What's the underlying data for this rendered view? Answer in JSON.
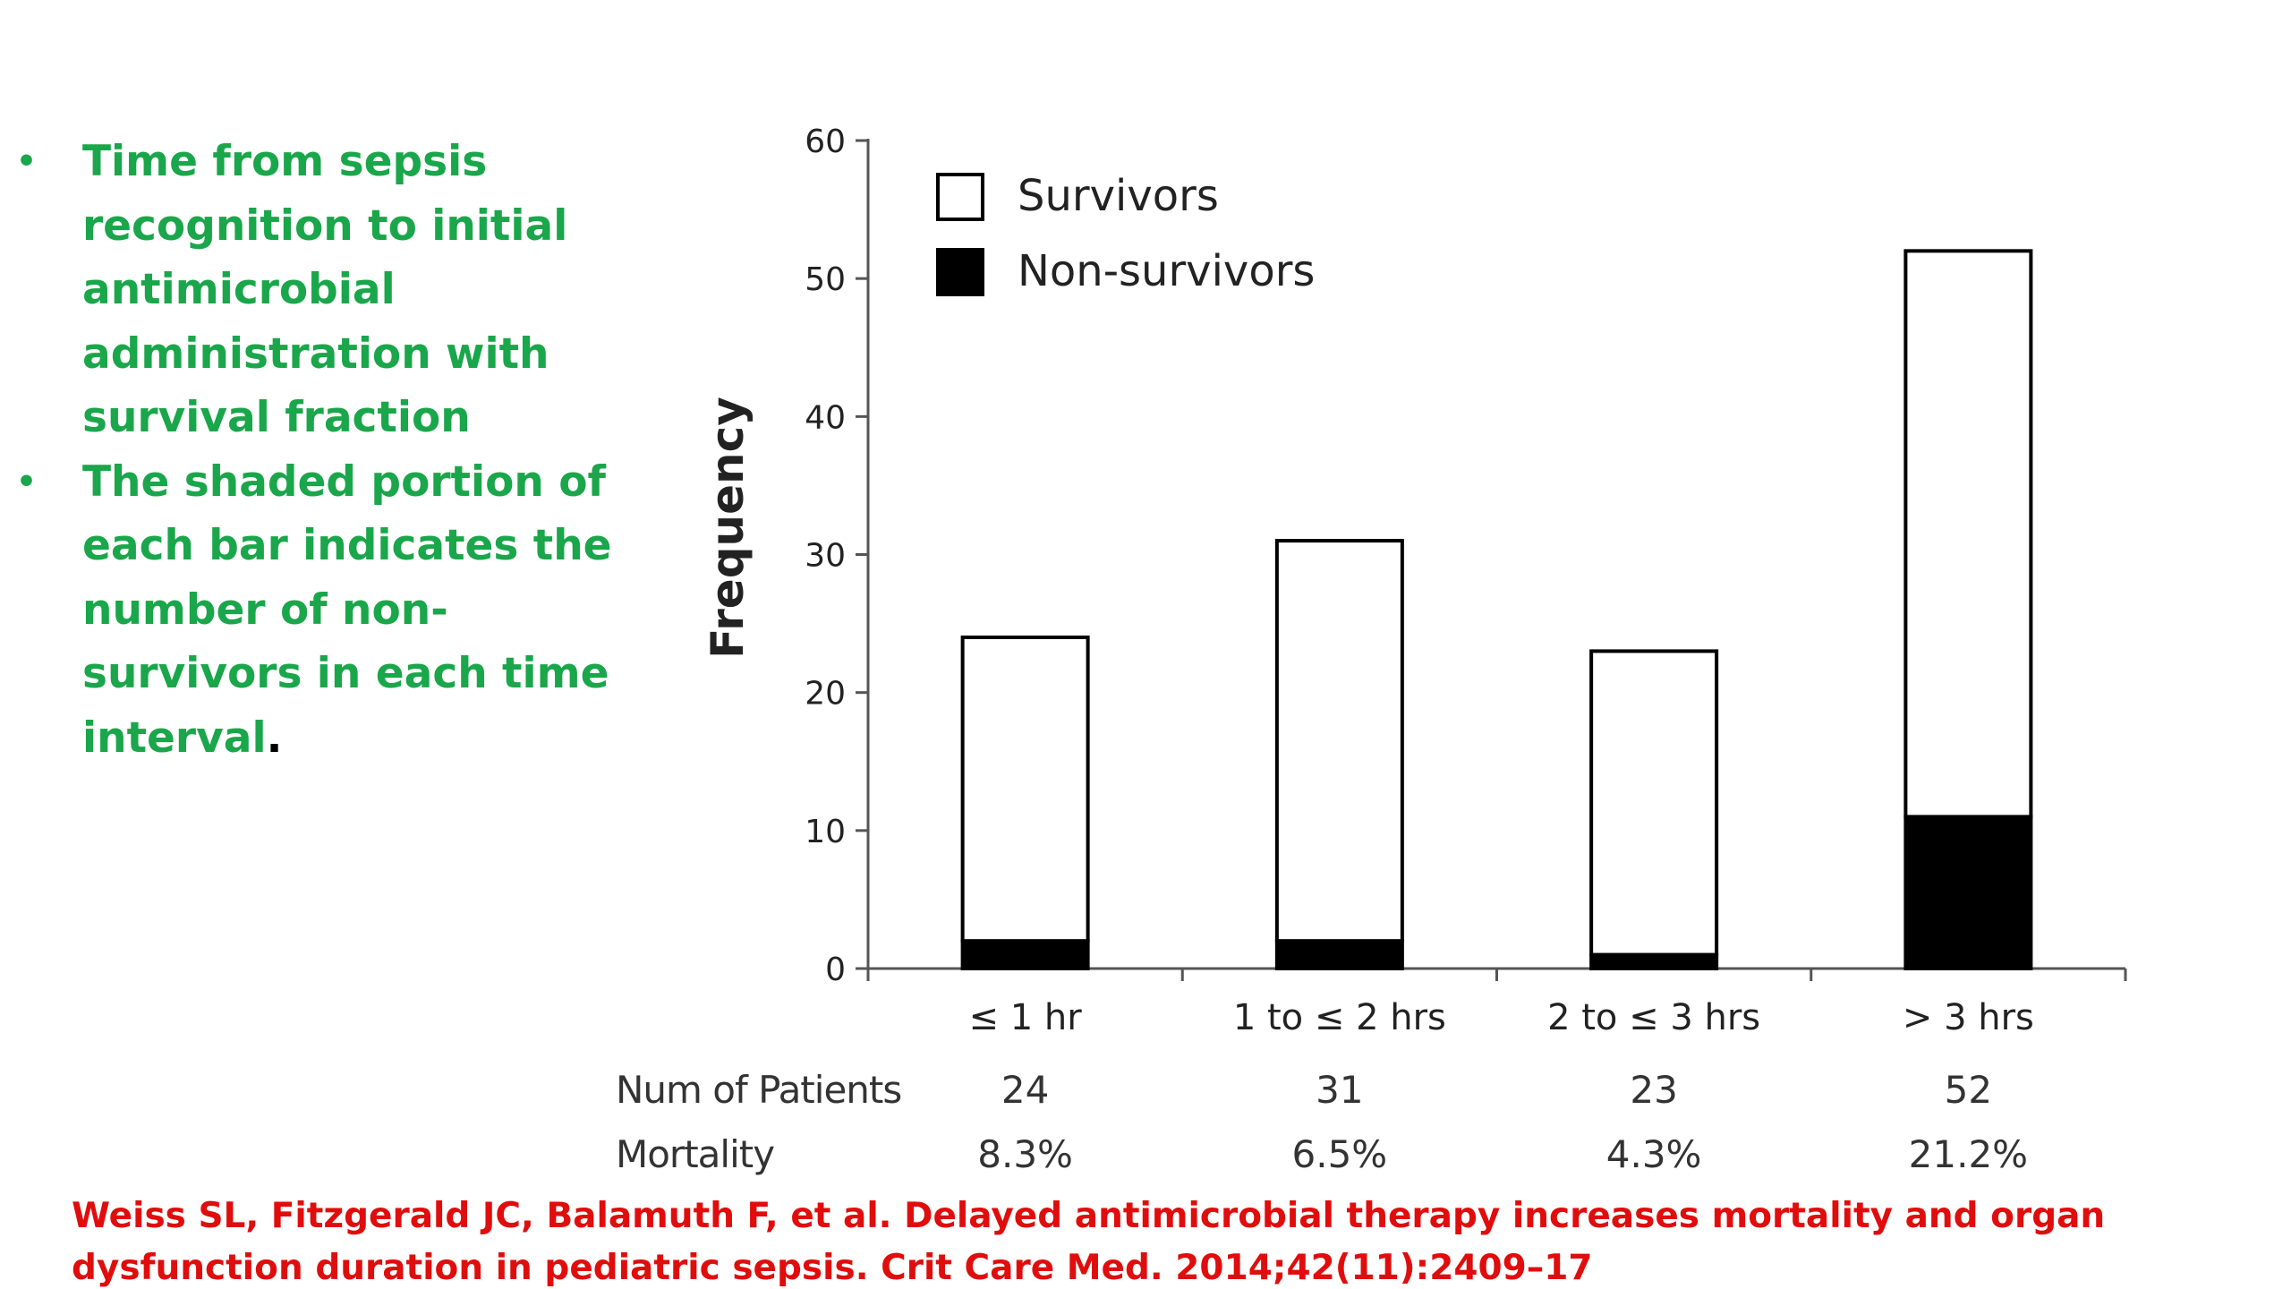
{
  "bullets": [
    {
      "text": "Time from sepsis recognition to initial antimicrobial administration with survival fraction",
      "suffix": ""
    },
    {
      "text": " The shaded portion of each bar indicates the number of non-survivors in each time interval",
      "suffix": "."
    }
  ],
  "bullet_glyph": "•",
  "citation": "Weiss SL, Fitzgerald JC, Balamuth F, et al. Delayed antimicrobial therapy increases mortality and organ dysfunction duration in pediatric sepsis. Crit Care Med. 2014;42(11):2409–17",
  "colors": {
    "bullet_text": "#1aa64a",
    "citation": "#e00d0d",
    "survivors": "#ffffff",
    "non_survivors": "#000000"
  },
  "chart_data": {
    "type": "bar",
    "stacked": true,
    "categories": [
      "≤ 1 hr",
      "1 to ≤ 2 hrs",
      "2 to ≤ 3 hrs",
      "> 3 hrs"
    ],
    "series": [
      {
        "name": "Non-survivors",
        "values": [
          2,
          2,
          1,
          11
        ],
        "color": "#000000"
      },
      {
        "name": "Survivors",
        "values": [
          22,
          29,
          22,
          41
        ],
        "color": "#ffffff"
      }
    ],
    "totals": [
      24,
      31,
      23,
      52
    ],
    "title": "",
    "xlabel": "",
    "ylabel": "Frequency",
    "ylim": [
      0,
      60
    ],
    "yticks": [
      0,
      10,
      20,
      30,
      40,
      50,
      60
    ],
    "grid": false,
    "legend": "top-left",
    "table": {
      "rows": [
        {
          "label": "Num of Patients",
          "values": [
            "24",
            "31",
            "23",
            "52"
          ]
        },
        {
          "label": "Mortality",
          "values": [
            "8.3%",
            "6.5%",
            "4.3%",
            "21.2%"
          ]
        }
      ]
    }
  }
}
